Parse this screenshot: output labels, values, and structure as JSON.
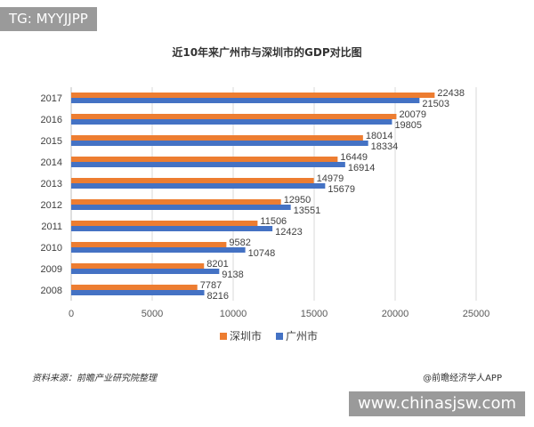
{
  "overlay_tag": "TG: MYYJJPP",
  "watermark_url": "www.chinasjsw.com",
  "footer": {
    "source": "资料来源：前瞻产业研究院整理",
    "brand": "@前瞻经济学人APP"
  },
  "chart_data": {
    "type": "bar",
    "orientation": "horizontal",
    "title": "近10年来广州市与深圳市的GDP对比图",
    "categories": [
      "2017",
      "2016",
      "2015",
      "2014",
      "2013",
      "2012",
      "2011",
      "2010",
      "2009",
      "2008"
    ],
    "series": [
      {
        "name": "深圳市",
        "color": "#ed7d31",
        "values": [
          22438,
          20079,
          18014,
          16449,
          14979,
          12950,
          11506,
          9582,
          8201,
          7787
        ]
      },
      {
        "name": "广州市",
        "color": "#4472c4",
        "values": [
          21503,
          19805,
          18334,
          16914,
          15679,
          13551,
          12423,
          10748,
          9138,
          8216
        ]
      }
    ],
    "xlim": [
      0,
      25000
    ],
    "xticks": [
      0,
      5000,
      10000,
      15000,
      20000,
      25000
    ],
    "grid": true,
    "legend": "bottom"
  }
}
